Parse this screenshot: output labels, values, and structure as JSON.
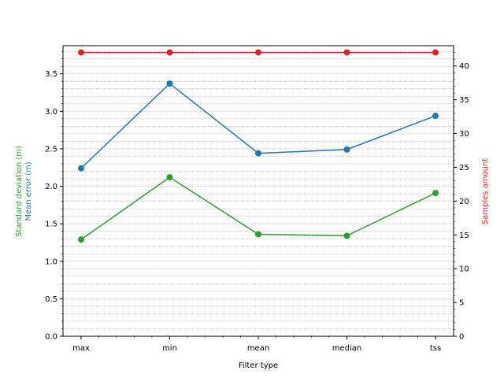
{
  "chart_data": {
    "type": "line",
    "categories": [
      "max",
      "min",
      "mean",
      "median",
      "tss"
    ],
    "xlabel": "Filter type",
    "left_axis": {
      "ylim": [
        0,
        3.875
      ],
      "ticks": [
        "0.0",
        "0.5",
        "1.0",
        "1.5",
        "2.0",
        "2.5",
        "3.0",
        "3.5"
      ],
      "labels": [
        {
          "text": "Standard deviation (m)",
          "color": "#2ca02c"
        },
        {
          "text": "Mean error (m)",
          "color": "#1f77b4"
        }
      ]
    },
    "right_axis": {
      "ylim": [
        0,
        43
      ],
      "ticks": [
        "0",
        "5",
        "10",
        "15",
        "20",
        "25",
        "30",
        "35",
        "40"
      ],
      "label": "Samples amount",
      "label_color": "#d62728"
    },
    "grid": "minor-dotted",
    "series": [
      {
        "axis": "left",
        "color": "#2ca02c",
        "values": [
          1.29,
          2.12,
          1.36,
          1.34,
          1.91
        ]
      },
      {
        "axis": "left",
        "color": "#1f77b4",
        "values": [
          2.24,
          3.37,
          2.44,
          2.49,
          2.94
        ]
      },
      {
        "axis": "right",
        "color": "#d62728",
        "values": [
          42,
          42,
          42,
          42,
          42
        ]
      }
    ]
  }
}
